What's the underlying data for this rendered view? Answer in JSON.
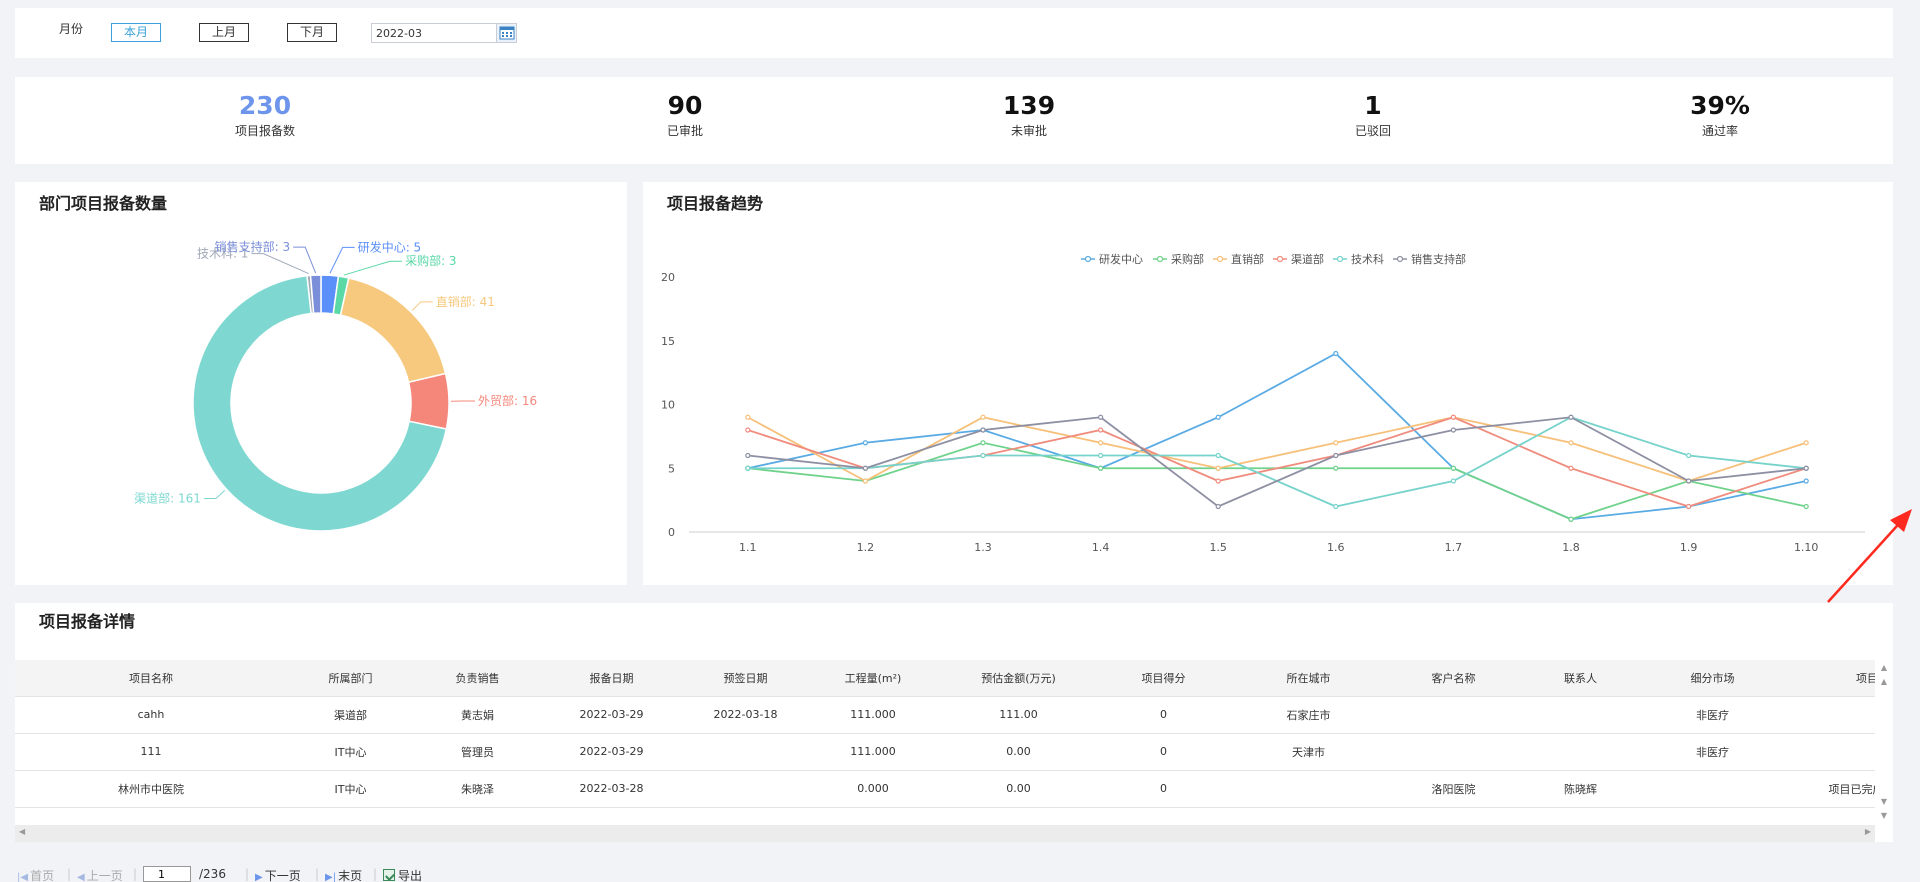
{
  "filter": {
    "label": "月份",
    "buttons": [
      "本月",
      "上月",
      "下月"
    ],
    "active_button": "本月",
    "date_value": "2022-03"
  },
  "stats": [
    {
      "value": "230",
      "label": "项目报备数"
    },
    {
      "value": "90",
      "label": "已审批"
    },
    {
      "value": "139",
      "label": "未审批"
    },
    {
      "value": "1",
      "label": "已驳回"
    },
    {
      "value": "39%",
      "label": "通过率"
    }
  ],
  "donut": {
    "title": "部门项目报备数量",
    "chart_data": {
      "type": "pie",
      "slices": [
        {
          "name": "研发中心",
          "value": 5,
          "color": "#5b8ff9",
          "label": "研发中心: 5"
        },
        {
          "name": "采购部",
          "value": 3,
          "color": "#5ad8a6",
          "label": "采购部: 3"
        },
        {
          "name": "直销部",
          "value": 41,
          "color": "#f6c97e",
          "label": "直销部: 41"
        },
        {
          "name": "外贸部",
          "value": 16,
          "color": "#f4877a",
          "label": "外贸部: 16"
        },
        {
          "name": "渠道部",
          "value": 161,
          "color": "#7ed8d1",
          "label": "渠道部: 161"
        },
        {
          "name": "技术科",
          "value": 1,
          "color": "#a0a9b8",
          "label": "技术科: 1"
        },
        {
          "name": "销售支持部",
          "value": 3,
          "color": "#7b8ed9",
          "label": "销售支持部: 3"
        }
      ]
    }
  },
  "trend": {
    "title": "项目报备趋势",
    "chart_data": {
      "type": "line",
      "x": [
        "1.1",
        "1.2",
        "1.3",
        "1.4",
        "1.5",
        "1.6",
        "1.7",
        "1.8",
        "1.9",
        "1.10"
      ],
      "ylim": [
        0,
        20
      ],
      "yticks": [
        "0",
        "5",
        "10",
        "15",
        "20"
      ],
      "legend_position": "top-center",
      "grid": false,
      "series": [
        {
          "name": "研发中心",
          "color": "#5aabe4",
          "values": [
            5,
            7,
            8,
            5,
            9,
            14,
            5,
            1,
            2,
            4
          ]
        },
        {
          "name": "采购部",
          "color": "#6fd28b",
          "values": [
            5,
            4,
            7,
            5,
            5,
            5,
            5,
            1,
            4,
            2
          ]
        },
        {
          "name": "直销部",
          "color": "#f7c07a",
          "values": [
            9,
            4,
            9,
            7,
            5,
            7,
            9,
            7,
            4,
            7
          ]
        },
        {
          "name": "渠道部",
          "color": "#f08c7e",
          "values": [
            8,
            5,
            6,
            8,
            4,
            6,
            9,
            5,
            2,
            5
          ]
        },
        {
          "name": "技术科",
          "color": "#76d3cb",
          "values": [
            5,
            5,
            6,
            6,
            6,
            2,
            4,
            9,
            6,
            5
          ]
        },
        {
          "name": "销售支持部",
          "color": "#8d8fa3",
          "values": [
            6,
            5,
            8,
            9,
            2,
            6,
            8,
            9,
            4,
            5
          ]
        }
      ]
    }
  },
  "details": {
    "title": "项目报备详情",
    "columns": [
      "项目名称",
      "所属部门",
      "负责销售",
      "报备日期",
      "预签日期",
      "工程量(m²)",
      "预估金额(万元)",
      "项目得分",
      "所在城市",
      "客户名称",
      "联系人",
      "细分市场",
      "项目动态"
    ],
    "rows": [
      [
        "cahh",
        "渠道部",
        "黄志娟",
        "2022-03-29",
        "2022-03-18",
        "111.000",
        "111.00",
        "0",
        "石家庄市",
        "",
        "",
        "非医疗",
        ""
      ],
      [
        "111",
        "IT中心",
        "管理员",
        "2022-03-29",
        "",
        "111.000",
        "0.00",
        "0",
        "天津市",
        "",
        "",
        "非医疗",
        ""
      ],
      [
        "林州市中医院",
        "IT中心",
        "朱晓泽",
        "2022-03-28",
        "",
        "0.000",
        "0.00",
        "0",
        "",
        "洛阳医院",
        "陈晓辉",
        "",
        "项目已完成土建阶段"
      ]
    ]
  },
  "pager": {
    "first": "首页",
    "prev": "上一页",
    "page_value": "1",
    "total": "/236",
    "next": "下一页",
    "last": "末页",
    "export": "导出"
  },
  "colors": {
    "accent_blue": "#6e95ec",
    "active_button": "#3aa1d9",
    "annotation_arrow": "#ff2a1f"
  }
}
